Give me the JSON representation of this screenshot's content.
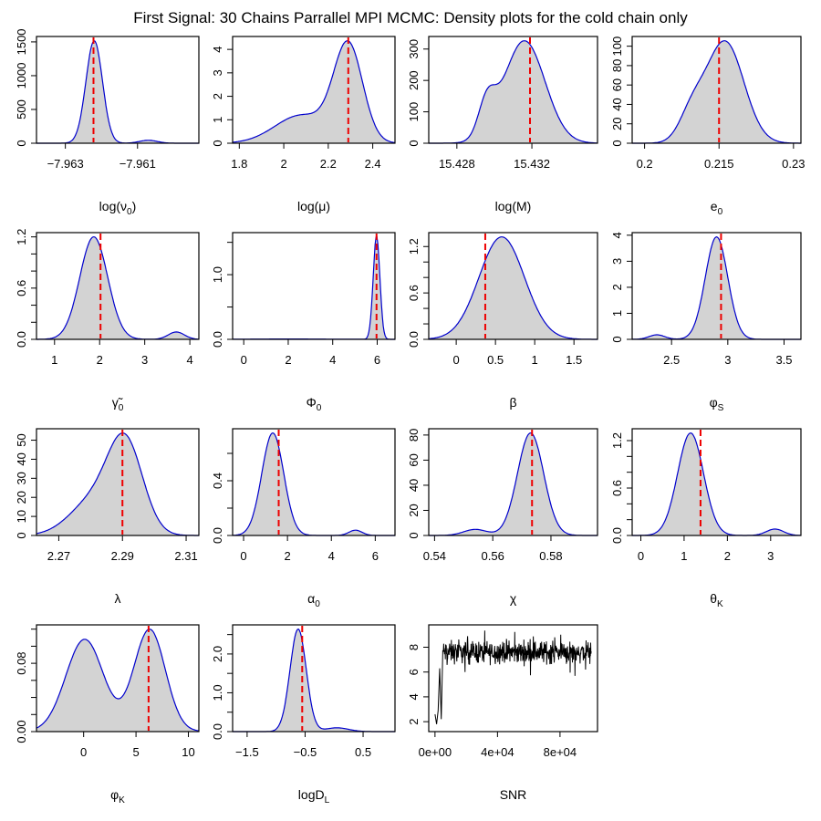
{
  "title": "First Signal: 30 Chains Parrallel MPI MCMC: Density plots for the cold chain only",
  "colors": {
    "fill": "#d3d3d3",
    "curve": "#0000cd",
    "marker": "#ee0000",
    "trace": "#000000"
  },
  "chart_data": [
    {
      "type": "area",
      "xlabel": "log(ν0)",
      "xlim": [
        -7.9638,
        -7.9593
      ],
      "ylim": [
        0,
        1580
      ],
      "xticks": [
        -7.963,
        -7.961
      ],
      "yticks": [
        0,
        500,
        1000,
        1500
      ],
      "marker": -7.96222,
      "components": [
        {
          "m": -7.9622,
          "s": 0.00023,
          "w": 0.97
        },
        {
          "m": -7.9607,
          "s": 0.00025,
          "w": 0.03
        }
      ]
    },
    {
      "type": "area",
      "xlabel": "log(μ)",
      "xlim": [
        1.77,
        2.5
      ],
      "ylim": [
        0,
        4.55
      ],
      "xticks": [
        1.8,
        2.0,
        2.2,
        2.4
      ],
      "yticks": [
        0,
        1,
        2,
        3,
        4
      ],
      "marker": 2.29,
      "components": [
        {
          "m": 2.29,
          "s": 0.065,
          "w": 0.65
        },
        {
          "m": 2.08,
          "s": 0.12,
          "w": 0.35
        }
      ]
    },
    {
      "type": "area",
      "xlabel": "log(M)",
      "xlim": [
        15.4265,
        15.4355
      ],
      "ylim": [
        0,
        340
      ],
      "xticks": [
        15.428,
        15.432
      ],
      "yticks": [
        0,
        100,
        200,
        300
      ],
      "marker": 15.4319,
      "components": [
        {
          "m": 15.4316,
          "s": 0.0011,
          "w": 0.88
        },
        {
          "m": 15.4296,
          "s": 0.00045,
          "w": 0.12
        }
      ]
    },
    {
      "type": "area",
      "xlabel": "e0",
      "xlim": [
        0.1975,
        0.2315
      ],
      "ylim": [
        0,
        110
      ],
      "xticks": [
        0.2,
        0.215,
        0.23
      ],
      "yticks": [
        0,
        20,
        40,
        60,
        80,
        100
      ],
      "marker": 0.215,
      "components": [
        {
          "m": 0.2162,
          "s": 0.0038,
          "w": 0.85
        },
        {
          "m": 0.2095,
          "s": 0.0025,
          "w": 0.15
        }
      ]
    },
    {
      "type": "area",
      "xlabel": "γ̃0",
      "xlim": [
        0.6,
        4.2
      ],
      "ylim": [
        0,
        1.25
      ],
      "xticks": [
        1,
        2,
        3,
        4
      ],
      "yticks": [
        0,
        0.2,
        0.4,
        0.6,
        0.8,
        1.0,
        1.2
      ],
      "ytick_labels": [
        "0.0",
        "",
        "",
        "0.6",
        "",
        "",
        "1.2"
      ],
      "marker": 2.02,
      "components": [
        {
          "m": 1.87,
          "s": 0.31,
          "w": 0.96
        },
        {
          "m": 3.7,
          "s": 0.18,
          "w": 0.04
        }
      ]
    },
    {
      "type": "area",
      "xlabel": "Φ0",
      "xlim": [
        -0.5,
        6.8
      ],
      "ylim": [
        0,
        1.65
      ],
      "xticks": [
        0,
        2,
        4,
        6
      ],
      "yticks": [
        0,
        0.5,
        1.0,
        1.5
      ],
      "ytick_labels": [
        "0.0",
        "",
        "1.0",
        ""
      ],
      "marker": 5.97,
      "components": [
        {
          "m": 5.97,
          "s": 0.15,
          "w": 0.96
        },
        {
          "m": 2.0,
          "s": 1.8,
          "w": 0.04
        }
      ]
    },
    {
      "type": "area",
      "xlabel": "β",
      "xlim": [
        -0.35,
        1.8
      ],
      "ylim": [
        0,
        1.38
      ],
      "xticks": [
        0.0,
        0.5,
        1.0,
        1.5
      ],
      "yticks": [
        0,
        0.2,
        0.4,
        0.6,
        0.8,
        1.0,
        1.2
      ],
      "ytick_labels": [
        "0.0",
        "",
        "",
        "0.6",
        "",
        "",
        "1.2"
      ],
      "marker": 0.37,
      "components": [
        {
          "m": 0.58,
          "s": 0.29,
          "w": 1.0
        }
      ]
    },
    {
      "type": "area",
      "xlabel": "φS",
      "xlim": [
        2.15,
        3.65
      ],
      "ylim": [
        0,
        4.1
      ],
      "xticks": [
        2.5,
        3.0,
        3.5
      ],
      "yticks": [
        0,
        1,
        2,
        3,
        4
      ],
      "marker": 2.94,
      "components": [
        {
          "m": 2.9,
          "s": 0.1,
          "w": 0.97
        },
        {
          "m": 2.37,
          "s": 0.07,
          "w": 0.03
        }
      ]
    },
    {
      "type": "area",
      "xlabel": "λ",
      "xlim": [
        2.263,
        2.314
      ],
      "ylim": [
        0,
        56
      ],
      "xticks": [
        2.27,
        2.29,
        2.31
      ],
      "yticks": [
        0,
        10,
        20,
        30,
        40,
        50
      ],
      "marker": 2.29,
      "components": [
        {
          "m": 2.291,
          "s": 0.0055,
          "w": 0.65
        },
        {
          "m": 2.281,
          "s": 0.0075,
          "w": 0.35
        }
      ]
    },
    {
      "type": "area",
      "xlabel": "α0",
      "xlim": [
        -0.5,
        6.9
      ],
      "ylim": [
        0,
        0.78
      ],
      "xticks": [
        0,
        2,
        4,
        6
      ],
      "yticks": [
        0,
        0.2,
        0.4,
        0.6
      ],
      "ytick_labels": [
        "0.0",
        "",
        "0.4",
        ""
      ],
      "marker": 1.6,
      "components": [
        {
          "m": 1.33,
          "s": 0.5,
          "w": 0.97
        },
        {
          "m": 5.1,
          "s": 0.3,
          "w": 0.03
        }
      ]
    },
    {
      "type": "area",
      "xlabel": "χ",
      "xlim": [
        0.538,
        0.596
      ],
      "ylim": [
        0,
        85
      ],
      "xticks": [
        0.54,
        0.56,
        0.58
      ],
      "yticks": [
        0,
        20,
        40,
        60,
        80
      ],
      "marker": 0.5735,
      "components": [
        {
          "m": 0.573,
          "s": 0.0045,
          "w": 0.95
        },
        {
          "m": 0.554,
          "s": 0.004,
          "w": 0.05
        }
      ]
    },
    {
      "type": "area",
      "xlabel": "θK",
      "xlim": [
        -0.2,
        3.7
      ],
      "ylim": [
        0,
        1.35
      ],
      "xticks": [
        0,
        1,
        2,
        3
      ],
      "yticks": [
        0,
        0.2,
        0.4,
        0.6,
        0.8,
        1.0,
        1.2
      ],
      "ytick_labels": [
        "0.0",
        "",
        "",
        "0.6",
        "",
        "",
        "1.2"
      ],
      "marker": 1.38,
      "components": [
        {
          "m": 1.15,
          "s": 0.3,
          "w": 0.96
        },
        {
          "m": 3.1,
          "s": 0.2,
          "w": 0.04
        }
      ]
    },
    {
      "type": "area",
      "xlabel": "φK",
      "xlim": [
        -4.5,
        11.0
      ],
      "ylim": [
        0,
        0.125
      ],
      "xticks": [
        0,
        5,
        10
      ],
      "yticks": [
        0,
        0.02,
        0.04,
        0.06,
        0.08,
        0.1,
        0.12
      ],
      "ytick_labels": [
        "0.00",
        "",
        "",
        "",
        "0.08",
        "",
        ""
      ],
      "marker": 6.2,
      "components": [
        {
          "m": 0.1,
          "s": 1.8,
          "w": 0.52
        },
        {
          "m": 6.3,
          "s": 1.5,
          "w": 0.48
        }
      ]
    },
    {
      "type": "area",
      "xlabel": "logDL",
      "xlim": [
        -1.75,
        1.05
      ],
      "ylim": [
        0,
        2.75
      ],
      "xticks": [
        -1.5,
        -0.5,
        0.5
      ],
      "yticks": [
        0,
        0.5,
        1.0,
        1.5,
        2.0,
        2.5
      ],
      "ytick_labels": [
        "0.0",
        "",
        "1.0",
        "",
        "2.0",
        ""
      ],
      "marker": -0.55,
      "components": [
        {
          "m": -0.62,
          "s": 0.14,
          "w": 0.95
        },
        {
          "m": 0.05,
          "s": 0.2,
          "w": 0.05
        }
      ]
    },
    {
      "type": "line",
      "xlabel": "SNR",
      "xlim": [
        -4000,
        104000
      ],
      "ylim": [
        1.2,
        9.8
      ],
      "xticks": [
        0,
        40000,
        80000
      ],
      "xtick_labels": [
        "0e+00",
        "4e+04",
        "8e+04"
      ],
      "yticks": [
        2,
        4,
        6,
        8
      ],
      "ytick_labels": [
        "2",
        "4",
        "6",
        "8"
      ],
      "burnin": {
        "x": [
          0,
          1000,
          2000,
          3000,
          4000,
          5000
        ],
        "y": [
          2.6,
          1.8,
          2.9,
          6.3,
          2.2,
          7.7
        ]
      },
      "plateau": {
        "mean": 7.6,
        "spread": 0.55,
        "range": [
          5.6,
          9.5
        ],
        "x_end": 100000
      }
    }
  ]
}
